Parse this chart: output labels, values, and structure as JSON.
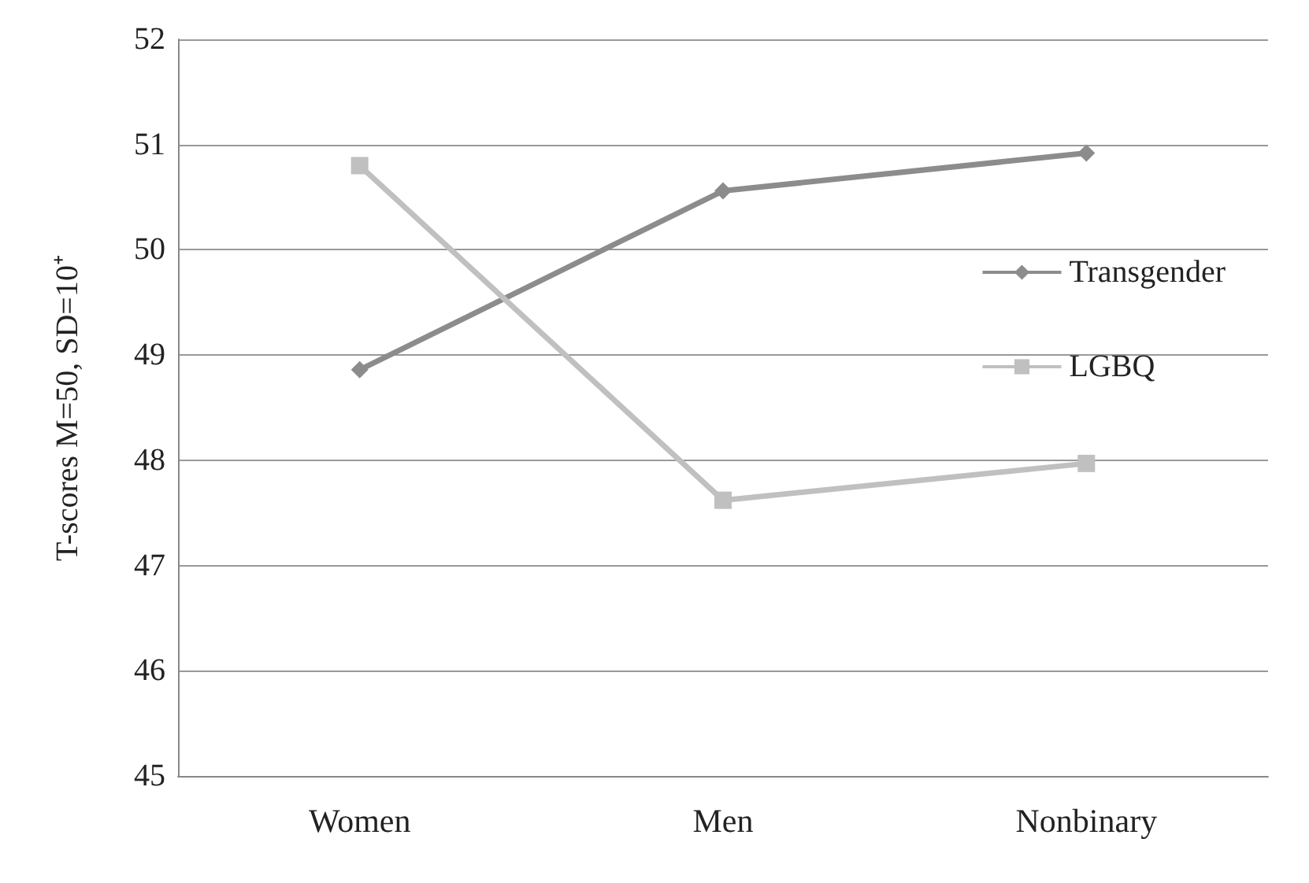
{
  "chart_data": {
    "type": "line",
    "ylabel": "T-scores M=50, SD=10⁺",
    "categories": [
      "Women",
      "Men",
      "Nonbinary"
    ],
    "series": [
      {
        "name": "Transgender",
        "color": "#8c8c8c",
        "marker": "diamond",
        "values": [
          48.86,
          50.56,
          50.92
        ]
      },
      {
        "name": "LGBQ",
        "color": "#c0c0c0",
        "marker": "square",
        "values": [
          50.8,
          47.62,
          47.97
        ]
      }
    ],
    "ylim": [
      45,
      52
    ],
    "yticks": [
      45,
      46,
      47,
      48,
      49,
      50,
      51,
      52
    ],
    "grid": "y",
    "legend": "right"
  }
}
